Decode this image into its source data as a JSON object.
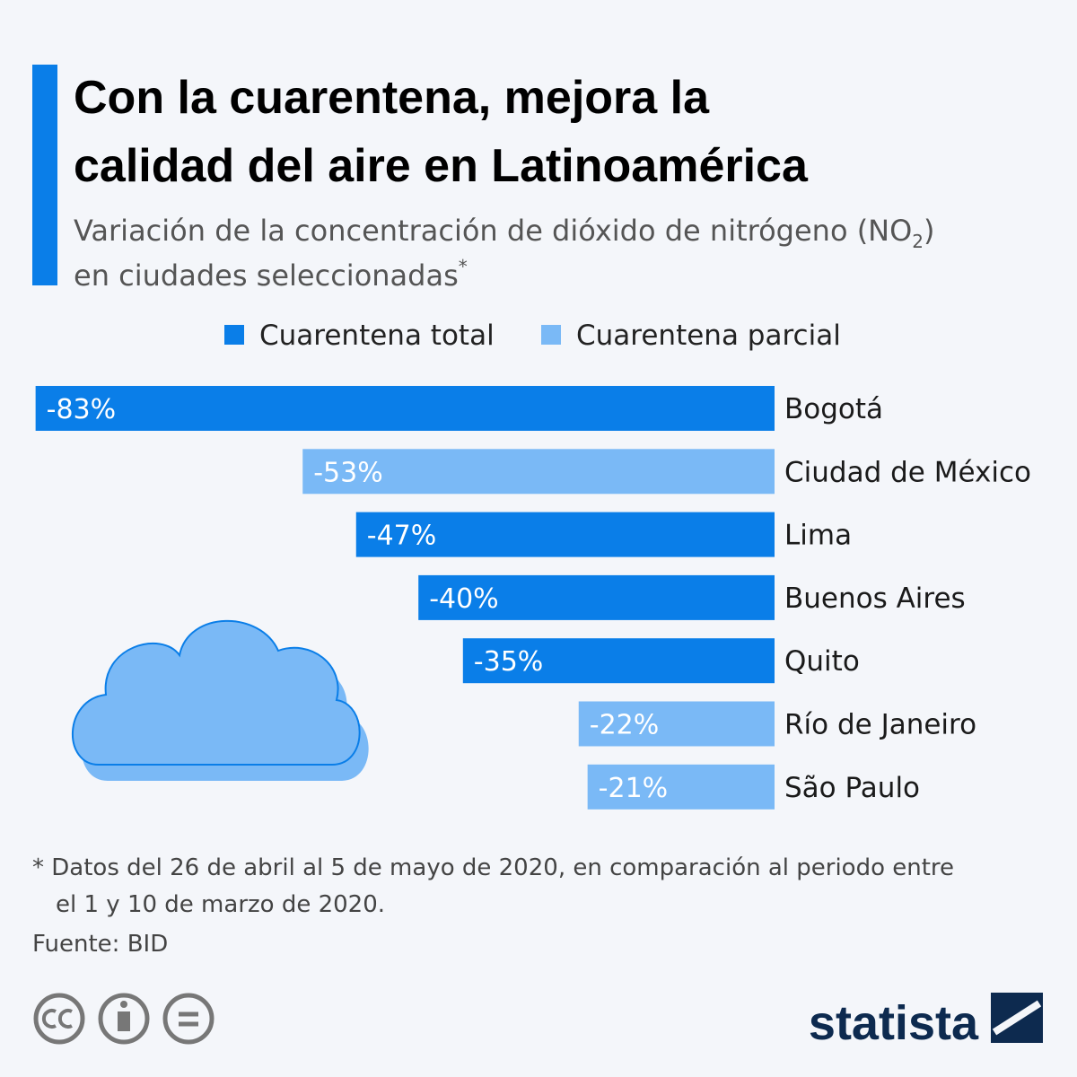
{
  "chart_data": {
    "type": "bar",
    "orientation": "horizontal",
    "title": [
      "Con la cuarentena, mejora la",
      "calidad del aire en Latinoamérica"
    ],
    "subtitle": [
      "Variación de la concentración de dióxido de nitrógeno (NO",
      "2",
      ")",
      "en ciudades seleccionadas",
      "*"
    ],
    "categories": [
      "Bogotá",
      "Ciudad de México",
      "Lima",
      "Buenos Aires",
      "Quito",
      "Río de Janeiro",
      "São Paulo"
    ],
    "series": [
      {
        "name": "Cuarentena total",
        "color": "#0a7ee8",
        "values": [
          -83,
          null,
          -47,
          -40,
          -35,
          null,
          null
        ],
        "value_labels": [
          "-83%",
          null,
          "-47%",
          "-40%",
          "-35%",
          null,
          null
        ]
      },
      {
        "name": "Cuarentena parcial",
        "color": "#7ab9f6",
        "values": [
          null,
          -53,
          null,
          null,
          null,
          -22,
          -21
        ],
        "value_labels": [
          null,
          "-53%",
          null,
          null,
          null,
          "-22%",
          "-21%"
        ]
      }
    ],
    "footnote": [
      "* Datos del 26 de abril al 5 de mayo de 2020, en comparación al periodo entre",
      "el 1 y 10 de marzo de 2020."
    ],
    "source": "Fuente: BID",
    "logo": "statista"
  }
}
